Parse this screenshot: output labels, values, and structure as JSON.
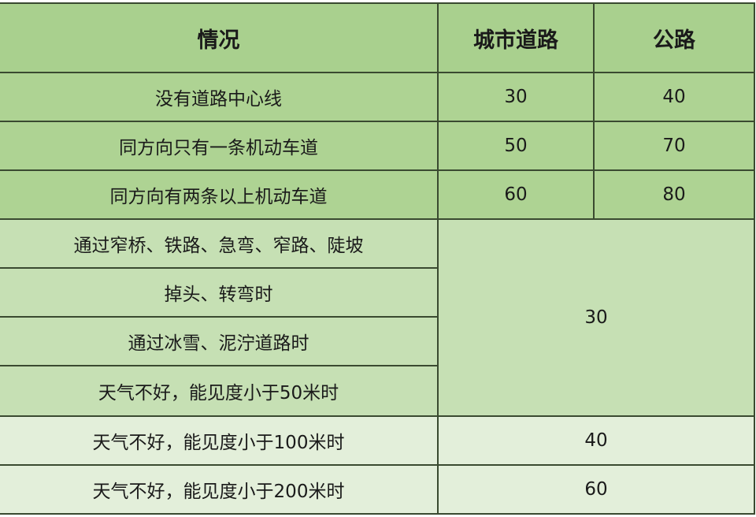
{
  "headers": [
    "情况",
    "城市道路",
    "公路"
  ],
  "rows": [
    {
      "situation": "没有道路中心线",
      "city": "30",
      "highway": "40"
    },
    {
      "situation": "同方向只有一条机动车道",
      "city": "50",
      "highway": "70"
    },
    {
      "situation": "同方向有两条以上机动车道",
      "city": "60",
      "highway": "80"
    }
  ],
  "merged_group": {
    "situations": [
      "通过窄桥、铁路、急弯、窄路、陡坡",
      "掉头、转弯时",
      "通过冰雪、泥泞道路时",
      "天气不好，能见度小于50米时"
    ],
    "value": "30"
  },
  "visibility_rows": [
    {
      "situation": "天气不好，能见度小于100米时",
      "value": "40"
    },
    {
      "situation": "天气不好，能见度小于200米时",
      "value": "60"
    }
  ],
  "colors": {
    "header": "#a9d08e",
    "rows": "#aed393",
    "merged": "#c6e0b4",
    "light": "#e3efda",
    "border": "#3a4a30"
  }
}
